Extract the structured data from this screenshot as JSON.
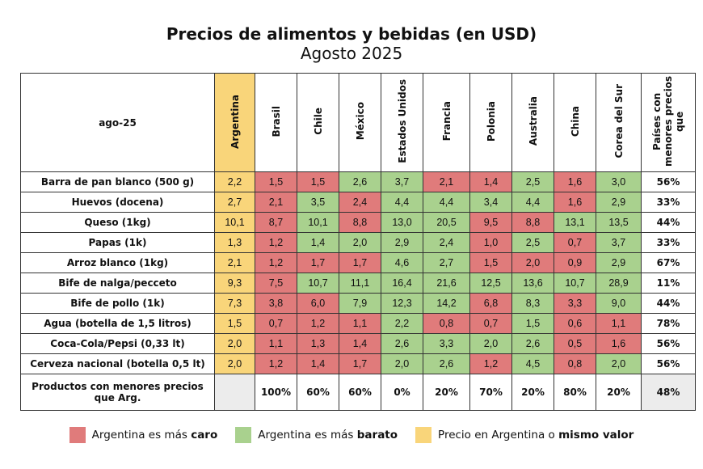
{
  "title": "Precios de alimentos y bebidas (en USD)",
  "subtitle": "Agosto 2025",
  "corner_label": "ago-25",
  "colors": {
    "caro": "#e07b7b",
    "barato": "#a9d18e",
    "argentina": "#f9d57a"
  },
  "legend": [
    {
      "pre": "Argentina es más ",
      "bold": "caro",
      "post": "",
      "color": "#e07b7b"
    },
    {
      "pre": "Argentina es más ",
      "bold": "barato",
      "post": "",
      "color": "#a9d18e"
    },
    {
      "pre": "Precio en Argentina o ",
      "bold": "mismo valor",
      "post": "",
      "color": "#f9d57a"
    }
  ],
  "chart_data": {
    "type": "table",
    "columns": [
      "Argentina",
      "Brasil",
      "Chile",
      "México",
      "Estados Unidos",
      "Francia",
      "Polonia",
      "Australia",
      "China",
      "Corea del Sur",
      "Países con menores precios que"
    ],
    "rows": [
      {
        "label": "Barra de pan blanco (500 g)",
        "values": [
          "2,2",
          "1,5",
          "1,5",
          "2,6",
          "3,7",
          "2,1",
          "1,4",
          "2,5",
          "1,6",
          "3,0"
        ],
        "colors": [
          "y",
          "r",
          "r",
          "g",
          "g",
          "r",
          "r",
          "g",
          "r",
          "g"
        ],
        "pct": "56%"
      },
      {
        "label": "Huevos (docena)",
        "values": [
          "2,7",
          "2,1",
          "3,5",
          "2,4",
          "4,4",
          "4,4",
          "3,4",
          "4,4",
          "1,6",
          "2,9"
        ],
        "colors": [
          "y",
          "r",
          "g",
          "r",
          "g",
          "g",
          "g",
          "g",
          "r",
          "g"
        ],
        "pct": "33%"
      },
      {
        "label": "Queso (1kg)",
        "values": [
          "10,1",
          "8,7",
          "10,1",
          "8,8",
          "13,0",
          "20,5",
          "9,5",
          "8,8",
          "13,1",
          "13,5"
        ],
        "colors": [
          "y",
          "r",
          "g",
          "r",
          "g",
          "g",
          "r",
          "r",
          "g",
          "g"
        ],
        "pct": "44%"
      },
      {
        "label": "Papas (1k)",
        "values": [
          "1,3",
          "1,2",
          "1,4",
          "2,0",
          "2,9",
          "2,4",
          "1,0",
          "2,5",
          "0,7",
          "3,7"
        ],
        "colors": [
          "y",
          "r",
          "g",
          "g",
          "g",
          "g",
          "r",
          "g",
          "r",
          "g"
        ],
        "pct": "33%"
      },
      {
        "label": "Arroz blanco (1kg)",
        "values": [
          "2,1",
          "1,2",
          "1,7",
          "1,7",
          "4,6",
          "2,7",
          "1,5",
          "2,0",
          "0,9",
          "2,9"
        ],
        "colors": [
          "y",
          "r",
          "r",
          "r",
          "g",
          "g",
          "r",
          "r",
          "r",
          "g"
        ],
        "pct": "67%"
      },
      {
        "label": "Bife de nalga/pecceto",
        "values": [
          "9,3",
          "7,5",
          "10,7",
          "11,1",
          "16,4",
          "21,6",
          "12,5",
          "13,6",
          "10,7",
          "28,9"
        ],
        "colors": [
          "y",
          "r",
          "g",
          "g",
          "g",
          "g",
          "g",
          "g",
          "g",
          "g"
        ],
        "pct": "11%"
      },
      {
        "label": "Bife de pollo (1k)",
        "values": [
          "7,3",
          "3,8",
          "6,0",
          "7,9",
          "12,3",
          "14,2",
          "6,8",
          "8,3",
          "3,3",
          "9,0"
        ],
        "colors": [
          "y",
          "r",
          "r",
          "g",
          "g",
          "g",
          "r",
          "g",
          "r",
          "g"
        ],
        "pct": "44%"
      },
      {
        "label": "Agua (botella de 1,5 litros)",
        "values": [
          "1,5",
          "0,7",
          "1,2",
          "1,1",
          "2,2",
          "0,8",
          "0,7",
          "1,5",
          "0,6",
          "1,1"
        ],
        "colors": [
          "y",
          "r",
          "r",
          "r",
          "g",
          "r",
          "r",
          "g",
          "r",
          "r"
        ],
        "pct": "78%"
      },
      {
        "label": "Coca-Cola/Pepsi (0,33 lt)",
        "values": [
          "2,0",
          "1,1",
          "1,3",
          "1,4",
          "2,6",
          "3,3",
          "2,0",
          "2,6",
          "0,5",
          "1,6"
        ],
        "colors": [
          "y",
          "r",
          "r",
          "r",
          "g",
          "g",
          "g",
          "g",
          "r",
          "r"
        ],
        "pct": "56%"
      },
      {
        "label": "Cerveza nacional (botella 0,5 lt)",
        "values": [
          "2,0",
          "1,2",
          "1,4",
          "1,7",
          "2,0",
          "2,6",
          "1,2",
          "4,5",
          "0,8",
          "2,0"
        ],
        "colors": [
          "y",
          "r",
          "r",
          "r",
          "g",
          "g",
          "r",
          "g",
          "r",
          "g"
        ],
        "pct": "56%"
      }
    ],
    "footer": {
      "label": "Productos con menores precios que Arg.",
      "values": [
        "",
        "100%",
        "60%",
        "60%",
        "0%",
        "20%",
        "70%",
        "20%",
        "80%",
        "20%",
        "48%"
      ]
    }
  }
}
